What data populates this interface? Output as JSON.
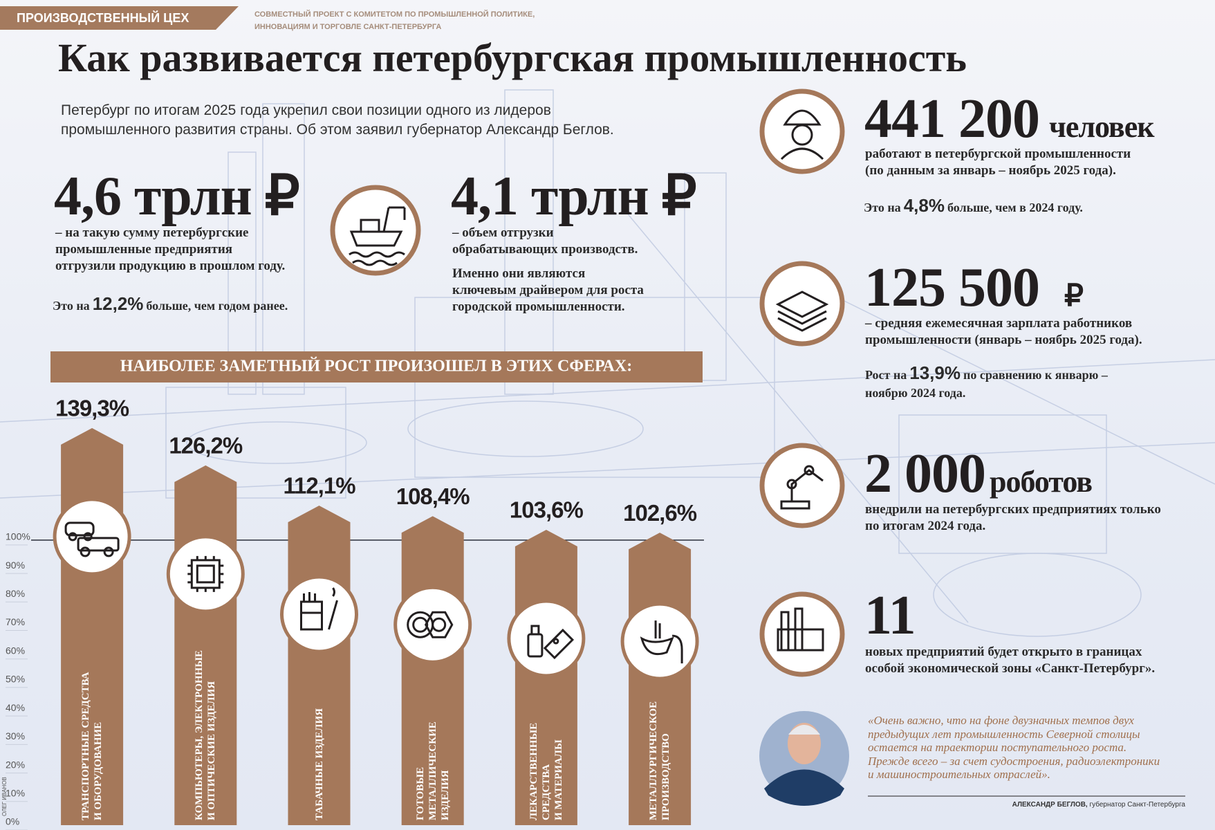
{
  "header": {
    "section": "ПРОИЗВОДСТВЕННЫЙ ЦЕХ",
    "partner": [
      "СОВМЕСТНЫЙ ПРОЕКТ С КОМИТЕТОМ ПО ПРОМЫШЛЕННОЙ ПОЛИТИКЕ,",
      "ИННОВАЦИЯМ И ТОРГОВЛЕ САНКТ-ПЕТЕРБУРГА"
    ]
  },
  "title": "Как развивается петербургская промышленность",
  "intro": [
    "Петербург по итогам 2025 года укрепил свои позиции одного из лидеров",
    "промышленного развития страны. Об этом заявил губернатор Александр Беглов."
  ],
  "stats": [
    {
      "value": "4,6 трлн ₽",
      "desc": [
        "– на такую сумму петербургские",
        "промышленные предприятия",
        "отгрузили продукцию в прошлом году."
      ],
      "note": {
        "before": "Это на",
        "value": "12,2%",
        "after": "больше, чем годом ранее."
      }
    },
    {
      "value": "4,1 трлн ₽",
      "desc": [
        "– объем отгрузки",
        "обрабатывающих производств."
      ],
      "extra": [
        "Именно они являются",
        "ключевым драйвером для роста",
        "городской промышленности."
      ]
    },
    {
      "value": "441 200",
      "unit": "человек",
      "desc": [
        "работают в петербургской промышленности",
        "(по данным за январь – ноябрь 2025 года)."
      ],
      "note": {
        "before": "Это на",
        "value": "4,8%",
        "after": "больше, чем в 2024 году."
      }
    },
    {
      "value": "125 500",
      "unit": "₽",
      "desc": [
        "– средняя ежемесячная зарплата работников",
        "промышленности (январь – ноябрь 2025 года)."
      ],
      "note": {
        "before": "Рост на",
        "value": "13,9%",
        "after": "по сравнению к январю –",
        "cont": "ноябрю 2024 года."
      }
    },
    {
      "value": "2 000",
      "unit": "роботов",
      "desc": [
        "внедрили на петербургских предприятиях только",
        "по итогам 2024 года."
      ]
    },
    {
      "value": "11",
      "desc": [
        "новых предприятий будет открыто в границах",
        "особой экономической зоны «Санкт-Петербург»."
      ]
    }
  ],
  "chart_data": {
    "type": "bar",
    "title": "НАИБОЛЕЕ ЗАМЕТНЫЙ РОСТ ПРОИЗОШЕЛ В ЭТИХ СФЕРАХ:",
    "categories": [
      "ТРАНСПОРТНЫЕ СРЕДСТВА\nИ ОБОРУДОВАНИЕ",
      "КОМПЬЮТЕРЫ, ЭЛЕКТРОННЫЕ\nИ ОПТИЧЕСКИЕ ИЗДЕЛИЯ",
      "ТАБАЧНЫЕ ИЗДЕЛИЯ",
      "ГОТОВЫЕ\nМЕТАЛЛИЧЕСКИЕ\nИЗДЕЛИЯ",
      "ЛЕКАРСТВЕННЫЕ\nСРЕДСТВА\nИ МАТЕРИАЛЫ",
      "МЕТАЛЛУРГИЧЕСКОЕ\nПРОИЗВОДСТВО"
    ],
    "values": [
      139.3,
      126.2,
      112.1,
      108.4,
      103.6,
      102.6
    ],
    "value_labels": [
      "139,3%",
      "126,2%",
      "112,1%",
      "108,4%",
      "103,6%",
      "102,6%"
    ],
    "color": "#a5785a",
    "ylim": [
      0,
      140
    ],
    "yticks": [
      {
        "value": 0,
        "label": "0%"
      },
      {
        "value": 10,
        "label": "10%"
      },
      {
        "value": 20,
        "label": "20%"
      },
      {
        "value": 30,
        "label": "30%"
      },
      {
        "value": 40,
        "label": "40%"
      },
      {
        "value": 50,
        "label": "50%"
      },
      {
        "value": 60,
        "label": "60%"
      },
      {
        "value": 70,
        "label": "70%"
      },
      {
        "value": 80,
        "label": "80%"
      },
      {
        "value": 90,
        "label": "90%"
      },
      {
        "value": 100,
        "label": "100%"
      }
    ],
    "baseline": 100,
    "grid": false
  },
  "quote": {
    "lines": [
      "«Очень важно, что на фоне двузначных темпов двух",
      "предыдущих лет промышленность Северной столицы",
      "остается на траектории поступательного роста.",
      "Прежде всего – за счет судостроения, радиоэлектроники",
      "и машиностроительных отраслей»."
    ],
    "author": "АЛЕКСАНДР БЕГЛОВ,",
    "position": "губернатор Санкт-Петербурга"
  },
  "credit": "ОЛЕГ ИВАНОВ"
}
